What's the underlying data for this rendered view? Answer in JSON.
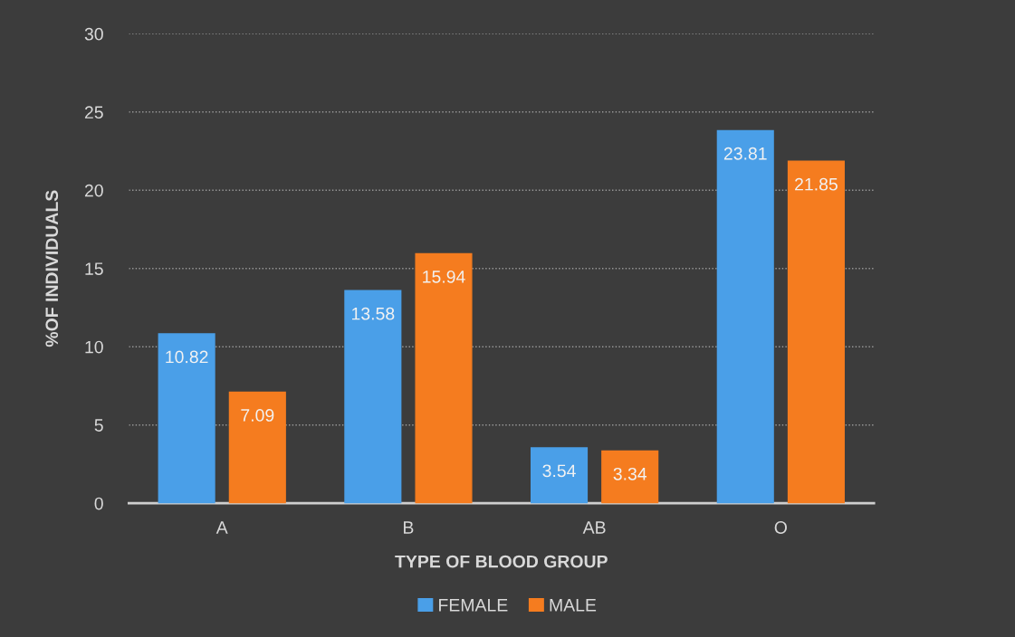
{
  "chart_data": {
    "type": "bar",
    "xlabel": "TYPE OF BLOOD GROUP",
    "ylabel": "%OF INDIVIDUALS",
    "categories": [
      "A",
      "B",
      "AB",
      "O"
    ],
    "series": [
      {
        "name": "FEMALE",
        "color": "#4a9fe8",
        "values": [
          10.82,
          13.58,
          3.54,
          23.81
        ]
      },
      {
        "name": "MALE",
        "color": "#f57c1f",
        "values": [
          7.09,
          15.94,
          3.34,
          21.85
        ]
      }
    ],
    "ylim": [
      0,
      30
    ],
    "yticks": [
      0,
      5,
      10,
      15,
      20,
      25,
      30
    ],
    "grid": "y",
    "legend": "bottom",
    "data_labels": true
  }
}
